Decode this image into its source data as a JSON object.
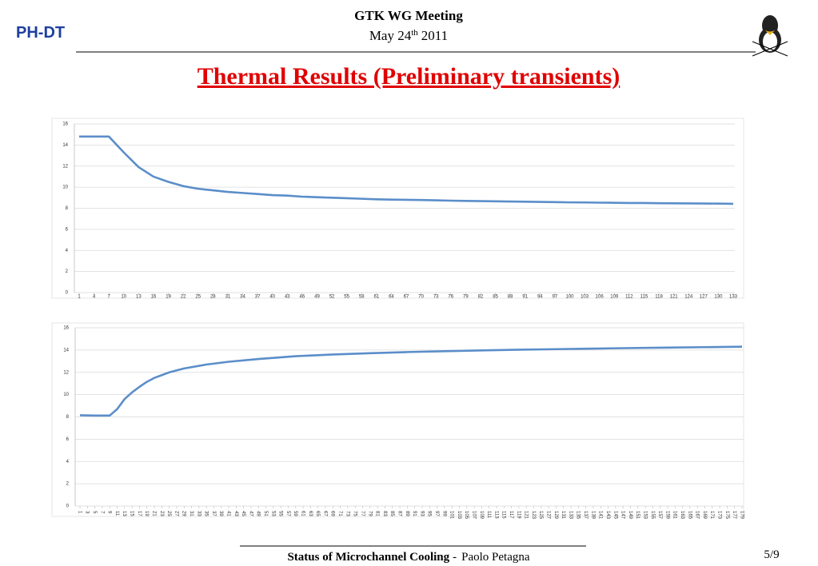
{
  "header": {
    "org": "PH-DT",
    "meeting": "GTK WG Meeting",
    "date_main": "May 24",
    "date_sup": "th",
    "date_year": "2011"
  },
  "title": "Thermal Results (Preliminary transients)",
  "chart_data": [
    {
      "type": "line",
      "x": [
        1,
        4,
        7,
        10,
        13,
        16,
        19,
        22,
        25,
        28,
        31,
        34,
        37,
        40,
        43,
        46,
        49,
        52,
        55,
        58,
        61,
        64,
        67,
        70,
        73,
        76,
        79,
        82,
        85,
        88,
        91,
        94,
        97,
        100,
        103,
        106,
        109,
        112,
        115,
        118,
        121,
        124,
        127,
        130,
        133
      ],
      "series": [
        {
          "color": "#5b8ec9",
          "values": [
            14.8,
            14.8,
            14.8,
            13.3,
            11.9,
            11.0,
            10.5,
            10.1,
            9.85,
            9.7,
            9.55,
            9.45,
            9.35,
            9.25,
            9.2,
            9.1,
            9.05,
            9.0,
            8.95,
            8.9,
            8.85,
            8.82,
            8.8,
            8.78,
            8.75,
            8.72,
            8.7,
            8.68,
            8.66,
            8.64,
            8.62,
            8.6,
            8.58,
            8.56,
            8.55,
            8.53,
            8.52,
            8.5,
            8.5,
            8.48,
            8.47,
            8.46,
            8.45,
            8.44,
            8.42
          ]
        }
      ],
      "xlim": [
        1,
        133
      ],
      "xticks": [
        1,
        4,
        7,
        10,
        13,
        16,
        19,
        22,
        25,
        28,
        31,
        34,
        37,
        40,
        43,
        46,
        49,
        52,
        55,
        58,
        61,
        64,
        67,
        70,
        73,
        76,
        79,
        82,
        85,
        88,
        91,
        94,
        97,
        100,
        103,
        106,
        109,
        112,
        115,
        118,
        121,
        124,
        127,
        130,
        133
      ],
      "ylim": [
        0,
        16
      ],
      "yticks": [
        0,
        2,
        4,
        6,
        8,
        10,
        12,
        14,
        16
      ],
      "grid": true
    },
    {
      "type": "line",
      "x": [
        1,
        5,
        9,
        11,
        13,
        15,
        17,
        19,
        21,
        23,
        25,
        29,
        35,
        41,
        49,
        59,
        69,
        79,
        89,
        99,
        109,
        119,
        129,
        139,
        149,
        159,
        169,
        179
      ],
      "series": [
        {
          "color": "#5b8ec9",
          "values": [
            8.15,
            8.12,
            8.12,
            8.7,
            9.6,
            10.2,
            10.7,
            11.15,
            11.5,
            11.75,
            12.0,
            12.35,
            12.7,
            12.95,
            13.2,
            13.45,
            13.6,
            13.72,
            13.82,
            13.9,
            13.97,
            14.03,
            14.08,
            14.13,
            14.18,
            14.22,
            14.26,
            14.3
          ]
        }
      ],
      "xlim": [
        1,
        179
      ],
      "xticks": [
        1,
        3,
        5,
        7,
        9,
        11,
        13,
        15,
        17,
        19,
        21,
        23,
        25,
        27,
        29,
        31,
        33,
        35,
        37,
        39,
        41,
        43,
        45,
        47,
        49,
        51,
        53,
        55,
        57,
        59,
        61,
        63,
        65,
        67,
        69,
        71,
        73,
        75,
        77,
        79,
        81,
        83,
        85,
        87,
        89,
        91,
        93,
        95,
        97,
        99,
        101,
        103,
        105,
        107,
        109,
        111,
        113,
        115,
        117,
        119,
        121,
        123,
        125,
        127,
        129,
        131,
        133,
        135,
        137,
        139,
        141,
        143,
        145,
        147,
        149,
        151,
        153,
        155,
        157,
        159,
        161,
        163,
        165,
        167,
        169,
        171,
        173,
        175,
        177,
        179
      ],
      "ylim": [
        0,
        16
      ],
      "yticks": [
        0,
        2,
        4,
        6,
        8,
        10,
        12,
        14,
        16
      ],
      "grid": true
    }
  ],
  "footer": {
    "topic": "Status of Microchannel Cooling",
    "separator": "-",
    "author": "Paolo Petagna",
    "page": "5/9"
  }
}
